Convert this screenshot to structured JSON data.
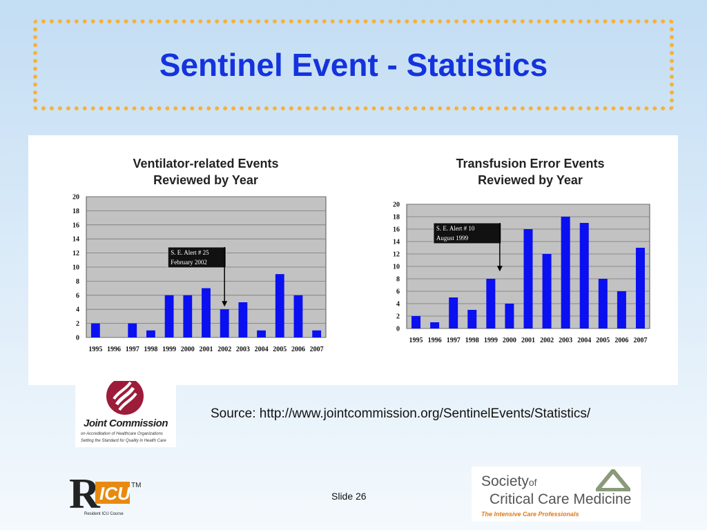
{
  "slide": {
    "title": "Sentinel Event - Statistics",
    "source": "Source: http://www.jointcommission.org/SentinelEvents/Statistics/",
    "slide_number": "Slide 26",
    "accent_color": "#1433dd",
    "border_color": "#f6b23a"
  },
  "logos": {
    "joint_commission": {
      "name": "Joint Commission",
      "line2": "on Accreditation of Healthcare Organizations",
      "line3": "Setting the Standard for Quality in Health Care"
    },
    "ricu": {
      "tm": "TM",
      "caption": "Resident ICU Course"
    },
    "sccm": {
      "line1": "Society",
      "line1b": "of",
      "line2": "Critical Care Medicine",
      "line3": "The Intensive Care Professionals"
    }
  },
  "chart_data": [
    {
      "type": "bar",
      "title": "Ventilator-related Events Reviewed by Year",
      "title_lines": [
        "Ventilator-related Events",
        "Reviewed by Year"
      ],
      "categories": [
        "1995",
        "1996",
        "1997",
        "1998",
        "1999",
        "2000",
        "2001",
        "2002",
        "2003",
        "2004",
        "2005",
        "2006",
        "2007"
      ],
      "values": [
        2,
        0,
        2,
        1,
        6,
        6,
        7,
        4,
        5,
        1,
        9,
        6,
        1
      ],
      "ylim": [
        0,
        20
      ],
      "yticks": [
        0,
        2,
        4,
        6,
        8,
        10,
        12,
        14,
        16,
        18,
        20
      ],
      "grid": true,
      "bar_color": "#0a10f0",
      "annotation": {
        "lines": [
          "S. E. Alert  # 25",
          "February 2002"
        ],
        "category": "2002"
      }
    },
    {
      "type": "bar",
      "title": "Transfusion Error Events Reviewed by Year",
      "title_lines": [
        "Transfusion Error Events",
        "Reviewed by Year"
      ],
      "categories": [
        "1995",
        "1996",
        "1997",
        "1998",
        "1999",
        "2000",
        "2001",
        "2002",
        "2003",
        "2004",
        "2005",
        "2006",
        "2007"
      ],
      "values": [
        2,
        1,
        5,
        3,
        8,
        4,
        16,
        12,
        18,
        17,
        8,
        6,
        13
      ],
      "ylim": [
        0,
        20
      ],
      "yticks": [
        0,
        2,
        4,
        6,
        8,
        10,
        12,
        14,
        16,
        18,
        20
      ],
      "grid": true,
      "bar_color": "#0a10f0",
      "annotation": {
        "lines": [
          "S. E. Alert  # 10",
          "August 1999"
        ],
        "category": "1999"
      }
    }
  ]
}
